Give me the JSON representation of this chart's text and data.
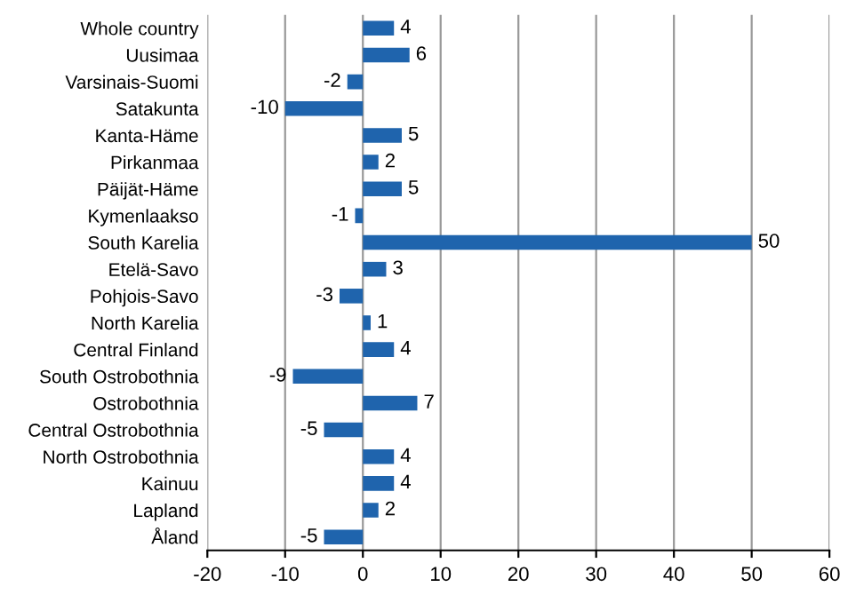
{
  "chart_data": {
    "type": "bar",
    "orientation": "horizontal",
    "categories": [
      "Whole country",
      "Uusimaa",
      "Varsinais-Suomi",
      "Satakunta",
      "Kanta-Häme",
      "Pirkanmaa",
      "Päijät-Häme",
      "Kymenlaakso",
      "South Karelia",
      "Etelä-Savo",
      "Pohjois-Savo",
      "North Karelia",
      "Central Finland",
      "South Ostrobothnia",
      "Ostrobothnia",
      "Central Ostrobothnia",
      "North Ostrobothnia",
      "Kainuu",
      "Lapland",
      "Åland"
    ],
    "values": [
      4,
      6,
      -2,
      -10,
      5,
      2,
      5,
      -1,
      50,
      3,
      -3,
      1,
      4,
      -9,
      7,
      -5,
      4,
      4,
      2,
      -5
    ],
    "color": "#1f64ad",
    "data_labels": true,
    "grid": "x",
    "xlim": [
      -20,
      60
    ],
    "xticks": [
      -20,
      -10,
      0,
      10,
      20,
      30,
      40,
      50,
      60
    ]
  }
}
